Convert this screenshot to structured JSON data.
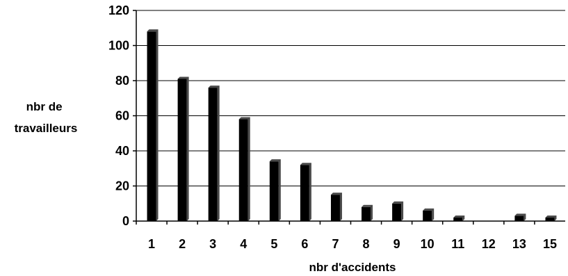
{
  "chart_data": {
    "type": "bar",
    "categories": [
      "1",
      "2",
      "3",
      "4",
      "5",
      "6",
      "7",
      "8",
      "9",
      "10",
      "11",
      "12",
      "13",
      "15"
    ],
    "values": [
      108,
      81,
      76,
      58,
      34,
      32,
      15,
      8,
      10,
      6,
      2,
      0,
      3,
      2
    ],
    "xlabel": "nbr d'accidents",
    "ylabel": [
      "nbr de",
      "travailleurs"
    ],
    "ylim": [
      0,
      120
    ],
    "yticks": [
      "0",
      "20",
      "40",
      "60",
      "80",
      "100",
      "120"
    ],
    "grid": true,
    "legend": "none",
    "colors": {
      "bar": "#000000",
      "grid": "#000000",
      "background": "#ffffff"
    }
  }
}
